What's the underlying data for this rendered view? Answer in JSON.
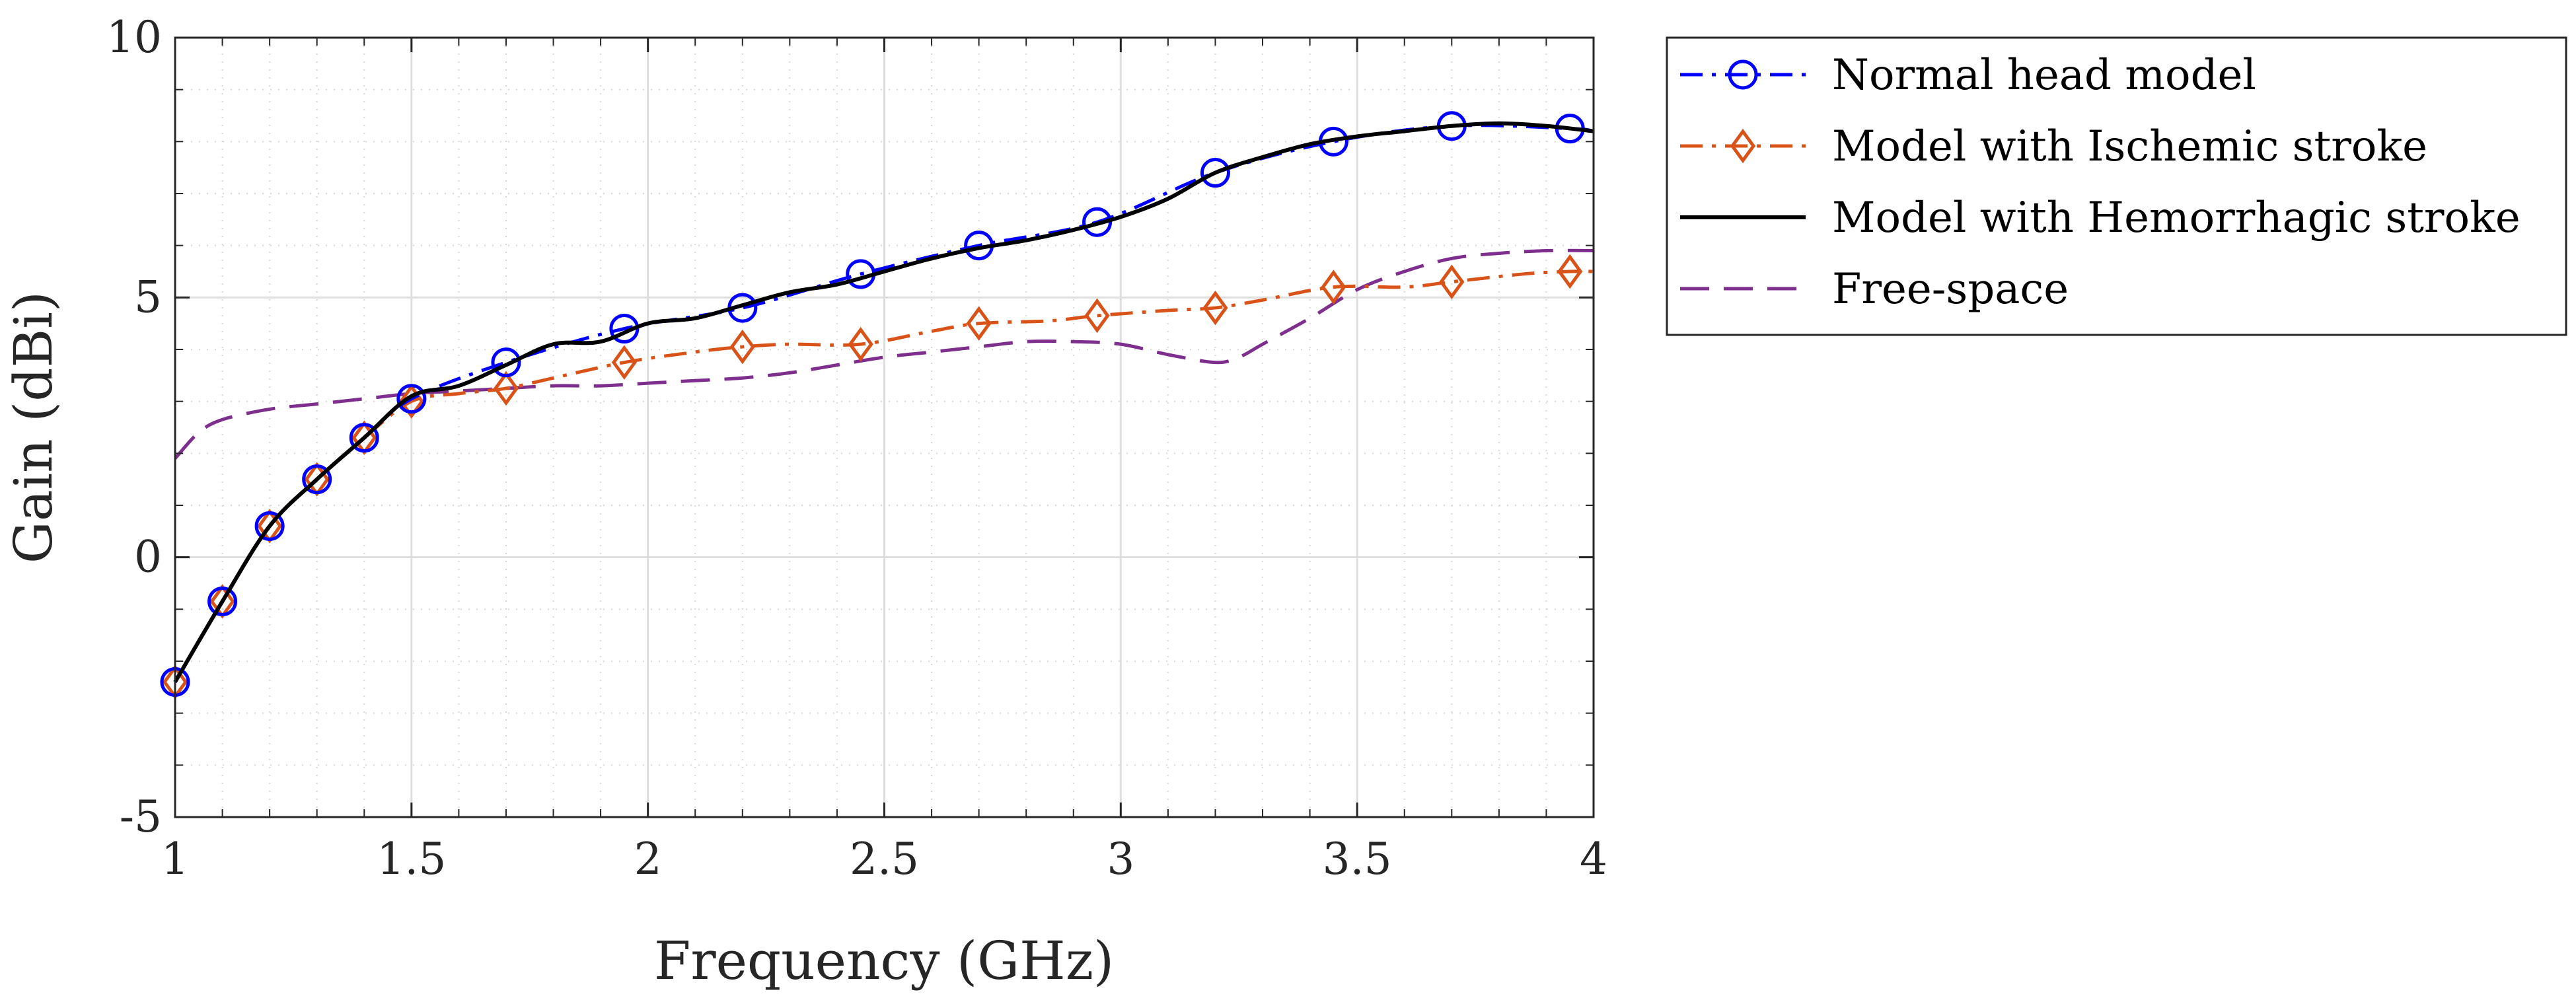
{
  "chart_data": {
    "type": "line",
    "title": "",
    "xlabel": "Frequency (GHz)",
    "ylabel": "Gain (dBi)",
    "xlim": [
      1,
      4
    ],
    "ylim": [
      -5,
      10
    ],
    "xticks": [
      1,
      1.5,
      2,
      2.5,
      3,
      3.5,
      4
    ],
    "xtick_labels": [
      "1",
      "1.5",
      "2",
      "2.5",
      "3",
      "3.5",
      "4"
    ],
    "yticks": [
      -5,
      0,
      5,
      10
    ],
    "ytick_labels": [
      "-5",
      "0",
      "5",
      "10"
    ],
    "grid": true,
    "minor_grid": true,
    "legend_position": "outside-right-top",
    "series": [
      {
        "name": "Normal head model",
        "color": "#0000ff",
        "line_style": "dash-dot",
        "marker": "circle",
        "x": [
          1,
          1.1,
          1.2,
          1.3,
          1.4,
          1.5,
          1.7,
          1.95,
          2.2,
          2.45,
          2.7,
          2.95,
          3.2,
          3.45,
          3.7,
          3.95,
          4.0
        ],
        "values": [
          -2.4,
          -0.85,
          0.6,
          1.5,
          2.3,
          3.05,
          3.75,
          4.4,
          4.8,
          5.45,
          6.0,
          6.45,
          7.4,
          8.0,
          8.3,
          8.25,
          8.2
        ]
      },
      {
        "name": "Model with Ischemic stroke",
        "color": "#d95319",
        "line_style": "dash-dot",
        "marker": "diamond",
        "x": [
          1,
          1.1,
          1.2,
          1.3,
          1.4,
          1.5,
          1.6,
          1.7,
          1.8,
          1.95,
          2.1,
          2.2,
          2.3,
          2.45,
          2.6,
          2.7,
          2.85,
          2.95,
          3.1,
          3.2,
          3.3,
          3.45,
          3.6,
          3.7,
          3.85,
          3.95,
          4.0
        ],
        "values": [
          -2.4,
          -0.85,
          0.6,
          1.5,
          2.3,
          3.0,
          3.15,
          3.25,
          3.45,
          3.75,
          3.95,
          4.05,
          4.1,
          4.1,
          4.35,
          4.5,
          4.55,
          4.65,
          4.75,
          4.8,
          4.95,
          5.2,
          5.2,
          5.3,
          5.45,
          5.5,
          5.5
        ],
        "marker_x": [
          1,
          1.1,
          1.2,
          1.3,
          1.4,
          1.5,
          1.7,
          1.95,
          2.2,
          2.45,
          2.7,
          2.95,
          3.2,
          3.45,
          3.7,
          3.95
        ]
      },
      {
        "name": "Model with Hemorrhagic stroke",
        "color": "#000000",
        "line_style": "solid",
        "marker": "none",
        "x": [
          1,
          1.1,
          1.2,
          1.3,
          1.4,
          1.5,
          1.6,
          1.7,
          1.8,
          1.9,
          2.0,
          2.1,
          2.2,
          2.3,
          2.4,
          2.5,
          2.6,
          2.7,
          2.8,
          2.9,
          3.0,
          3.1,
          3.2,
          3.3,
          3.4,
          3.5,
          3.6,
          3.7,
          3.8,
          3.9,
          4.0
        ],
        "values": [
          -2.4,
          -0.85,
          0.6,
          1.5,
          2.3,
          3.1,
          3.3,
          3.7,
          4.1,
          4.15,
          4.5,
          4.6,
          4.85,
          5.1,
          5.25,
          5.5,
          5.75,
          5.95,
          6.1,
          6.3,
          6.55,
          6.9,
          7.4,
          7.7,
          7.95,
          8.1,
          8.2,
          8.3,
          8.35,
          8.3,
          8.2
        ]
      },
      {
        "name": "Free-space",
        "color": "#7e2f8e",
        "line_style": "dashed",
        "marker": "none",
        "x": [
          1,
          1.05,
          1.1,
          1.2,
          1.3,
          1.4,
          1.5,
          1.6,
          1.7,
          1.8,
          1.9,
          2.0,
          2.1,
          2.2,
          2.3,
          2.4,
          2.5,
          2.6,
          2.7,
          2.8,
          2.9,
          3.0,
          3.1,
          3.2,
          3.25,
          3.3,
          3.4,
          3.5,
          3.6,
          3.7,
          3.8,
          3.9,
          4.0
        ],
        "values": [
          1.9,
          2.4,
          2.65,
          2.85,
          2.95,
          3.05,
          3.15,
          3.2,
          3.25,
          3.3,
          3.3,
          3.35,
          3.4,
          3.45,
          3.55,
          3.7,
          3.85,
          3.95,
          4.05,
          4.15,
          4.15,
          4.1,
          3.9,
          3.75,
          3.85,
          4.1,
          4.6,
          5.15,
          5.5,
          5.75,
          5.85,
          5.9,
          5.9
        ]
      }
    ]
  }
}
